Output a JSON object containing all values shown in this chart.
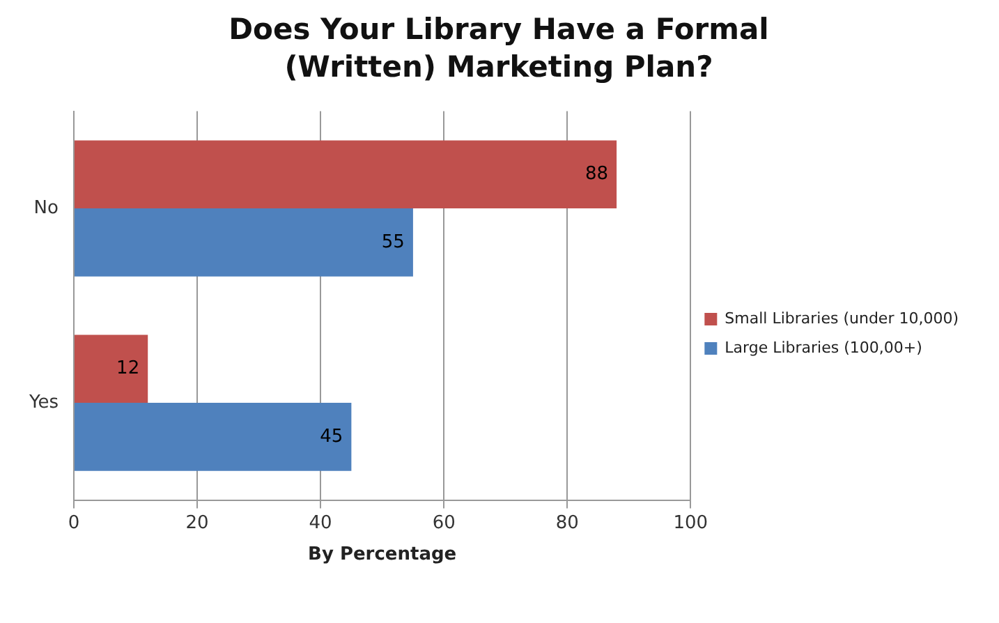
{
  "chart_data": {
    "type": "bar",
    "orientation": "horizontal",
    "title": "Does Your Library Have a Formal (Written) Marketing Plan?",
    "xlabel": "By Percentage",
    "categories": [
      "No",
      "Yes"
    ],
    "series": [
      {
        "name": "Small Libraries (under 10,000)",
        "color": "#c0504d",
        "values": [
          88,
          12
        ]
      },
      {
        "name": "Large Libraries (100,00+)",
        "color": "#4f81bd",
        "values": [
          55,
          45
        ]
      }
    ],
    "xlim": [
      0,
      100
    ],
    "xticks": [
      0,
      20,
      40,
      60,
      80,
      100
    ],
    "grid": "x",
    "legend": "right",
    "data_labels": true
  }
}
